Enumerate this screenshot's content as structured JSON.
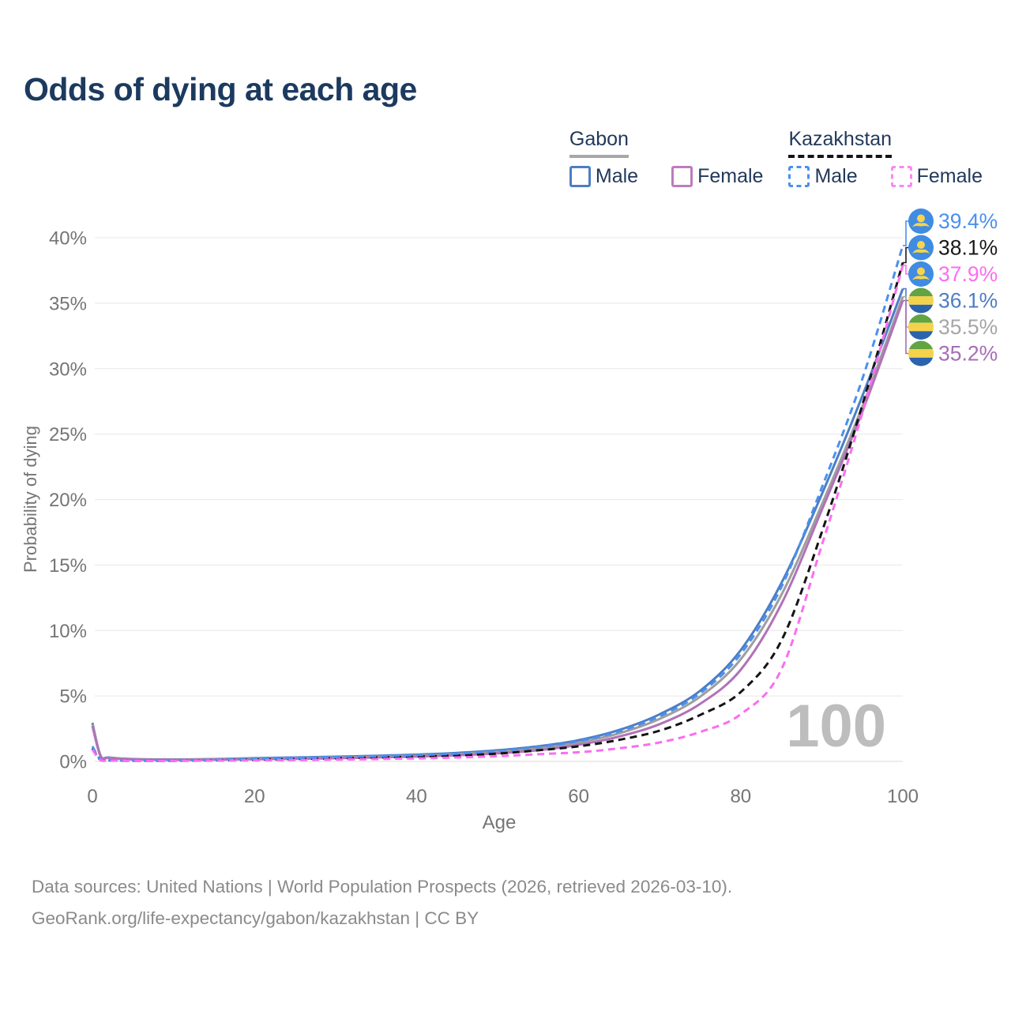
{
  "title": "Odds of dying at each age",
  "legend": {
    "groups": [
      {
        "name": "Gabon",
        "line_style": "solid",
        "underline_color": "#a8a8a8",
        "items": [
          {
            "label": "Male",
            "color": "#4d7dc5",
            "dashed": false
          },
          {
            "label": "Female",
            "color": "#bd7cbd",
            "dashed": false
          }
        ]
      },
      {
        "name": "Kazakhstan",
        "line_style": "dashed",
        "underline_color": "#141414",
        "items": [
          {
            "label": "Male",
            "color": "#4a90f0",
            "dashed": true
          },
          {
            "label": "Female",
            "color": "#fc87f0",
            "dashed": true
          }
        ]
      }
    ]
  },
  "chart_data": {
    "type": "line",
    "title": "Odds of dying at each age",
    "xlabel": "Age",
    "ylabel": "Probability of dying",
    "xlim": [
      0,
      100
    ],
    "ylim_percent": [
      0,
      42
    ],
    "grid": true,
    "hover_label": "100",
    "x_ticks": [
      0,
      20,
      40,
      60,
      80,
      100
    ],
    "x_tick_labels": [
      "0",
      "20",
      "40",
      "60",
      "80",
      "100"
    ],
    "y_ticks_percent": [
      0,
      5,
      10,
      15,
      20,
      25,
      30,
      35,
      40
    ],
    "y_tick_labels": [
      "0%",
      "5%",
      "10%",
      "15%",
      "20%",
      "25%",
      "30%",
      "35%",
      "40%"
    ],
    "ages": [
      0,
      1,
      2,
      5,
      10,
      15,
      20,
      25,
      30,
      35,
      40,
      45,
      50,
      55,
      60,
      65,
      70,
      75,
      80,
      85,
      90,
      95,
      100
    ],
    "series": [
      {
        "id": "gabon-male",
        "name": "Gabon Male",
        "country": "Gabon",
        "sex": "Male",
        "color": "#4d7dc5",
        "dashed": false,
        "values": [
          2.95,
          0.45,
          0.3,
          0.18,
          0.15,
          0.18,
          0.25,
          0.3,
          0.36,
          0.43,
          0.52,
          0.65,
          0.85,
          1.15,
          1.62,
          2.4,
          3.6,
          5.4,
          8.5,
          13.6,
          20.4,
          27.9,
          36.1
        ]
      },
      {
        "id": "gabon-both",
        "name": "Gabon Both sexes",
        "country": "Gabon",
        "sex": "Both",
        "color": "#9e9e9e",
        "dashed": false,
        "values": [
          2.85,
          0.42,
          0.28,
          0.16,
          0.13,
          0.16,
          0.21,
          0.25,
          0.3,
          0.36,
          0.44,
          0.56,
          0.74,
          1.0,
          1.45,
          2.15,
          3.25,
          4.95,
          7.8,
          12.7,
          19.6,
          27.1,
          35.5
        ]
      },
      {
        "id": "gabon-female",
        "name": "Gabon Female",
        "country": "Gabon",
        "sex": "Female",
        "color": "#b172b8",
        "dashed": false,
        "values": [
          2.7,
          0.4,
          0.26,
          0.15,
          0.12,
          0.13,
          0.17,
          0.2,
          0.24,
          0.3,
          0.37,
          0.47,
          0.62,
          0.85,
          1.27,
          1.9,
          2.85,
          4.4,
          7.0,
          12.0,
          19.2,
          26.7,
          35.2
        ]
      },
      {
        "id": "kazakhstan-both",
        "name": "Kazakhstan Both sexes",
        "country": "Kazakhstan",
        "sex": "Both",
        "color": "#141414",
        "dashed": true,
        "values": [
          1.0,
          0.1,
          0.07,
          0.05,
          0.05,
          0.09,
          0.14,
          0.18,
          0.24,
          0.3,
          0.37,
          0.46,
          0.6,
          0.85,
          1.15,
          1.65,
          2.35,
          3.55,
          5.3,
          9.2,
          17.5,
          27.2,
          38.1
        ]
      },
      {
        "id": "kazakhstan-male",
        "name": "Kazakhstan Male",
        "country": "Kazakhstan",
        "sex": "Male",
        "color": "#4a90f0",
        "dashed": true,
        "values": [
          1.15,
          0.12,
          0.08,
          0.06,
          0.06,
          0.12,
          0.2,
          0.26,
          0.33,
          0.4,
          0.48,
          0.6,
          0.8,
          1.1,
          1.55,
          2.3,
          3.45,
          5.2,
          8.2,
          13.3,
          20.9,
          29.2,
          39.4
        ]
      },
      {
        "id": "kazakhstan-female",
        "name": "Kazakhstan Female",
        "country": "Kazakhstan",
        "sex": "Female",
        "color": "#fa6ef0",
        "dashed": true,
        "values": [
          0.9,
          0.09,
          0.06,
          0.04,
          0.04,
          0.06,
          0.08,
          0.1,
          0.14,
          0.18,
          0.23,
          0.3,
          0.4,
          0.55,
          0.7,
          1.0,
          1.45,
          2.25,
          3.6,
          7.0,
          16.5,
          26.6,
          37.9
        ]
      }
    ]
  },
  "end_labels": [
    {
      "text": "39.4%",
      "value": 39.4,
      "series": "Kazakhstan Male",
      "flag": "kazakhstan",
      "color": "#4a90f0"
    },
    {
      "text": "38.1%",
      "value": 38.1,
      "series": "Kazakhstan Both sexes",
      "flag": "kazakhstan",
      "color": "#1a1a1a"
    },
    {
      "text": "37.9%",
      "value": 37.9,
      "series": "Kazakhstan Female",
      "flag": "kazakhstan",
      "color": "#fa6ef0"
    },
    {
      "text": "36.1%",
      "value": 36.1,
      "series": "Gabon Male",
      "flag": "gabon",
      "color": "#4d7dc5"
    },
    {
      "text": "35.5%",
      "value": 35.5,
      "series": "Gabon Both sexes",
      "flag": "gabon",
      "color": "#a6a6a6"
    },
    {
      "text": "35.2%",
      "value": 35.2,
      "series": "Gabon Female",
      "flag": "gabon",
      "color": "#a76db5"
    }
  ],
  "flag_colors": {
    "kazakhstan": {
      "background": "#3f8ce2",
      "emblem": "#f8d44c"
    },
    "gabon": {
      "green": "#62a344",
      "yellow": "#f5d24b",
      "blue": "#2b63ad"
    }
  },
  "style_colors": {
    "title": "#1c3a5f",
    "axis_text": "#757575",
    "grid": "#ececec",
    "zero_line": "#e2e2e2",
    "watermark": "#bdbdbd",
    "footer_text": "#8a8a8a"
  },
  "footer": {
    "line1": "Data sources: United Nations | World Population Prospects (2026, retrieved 2026-03-10).",
    "line2": "GeoRank.org/life-expectancy/gabon/kazakhstan | CC BY"
  }
}
